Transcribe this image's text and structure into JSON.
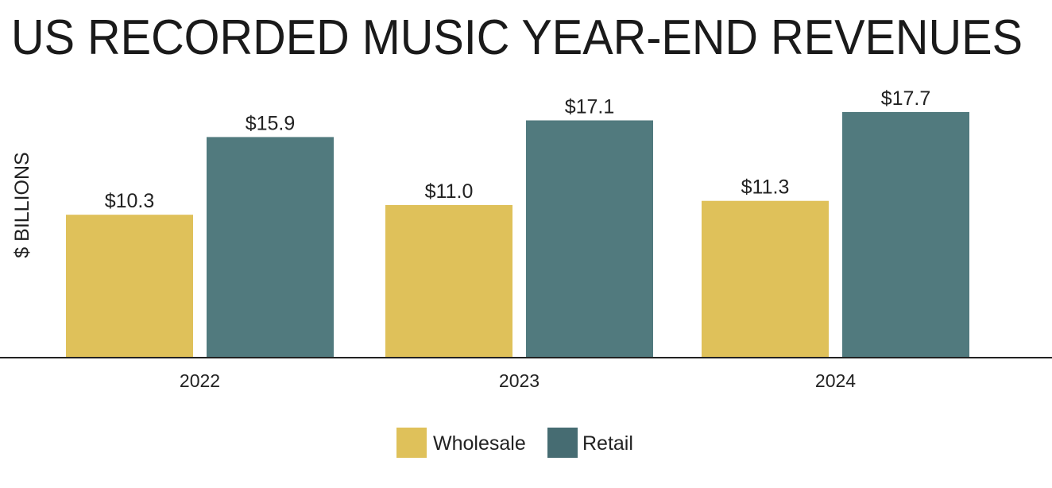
{
  "chart_data": {
    "type": "bar",
    "title": "US RECORDED MUSIC YEAR-END REVENUES",
    "xlabel": "",
    "ylabel": "$ BILLIONS",
    "ylim": [
      0,
      17.7
    ],
    "grid": false,
    "legend_position": "bottom",
    "categories": [
      "2022",
      "2023",
      "2024"
    ],
    "series": [
      {
        "name": "Wholesale",
        "color": "#dfc15a",
        "values": [
          10.3,
          11.0,
          11.3
        ],
        "labels": [
          "$10.3",
          "$11.0",
          "$11.3"
        ]
      },
      {
        "name": "Retail",
        "color": "#517a7e",
        "values": [
          15.9,
          17.1,
          17.7
        ],
        "labels": [
          "$15.9",
          "$17.1",
          "$17.7"
        ]
      }
    ],
    "legend_colors": [
      "#dfc15a",
      "#466c72"
    ]
  }
}
